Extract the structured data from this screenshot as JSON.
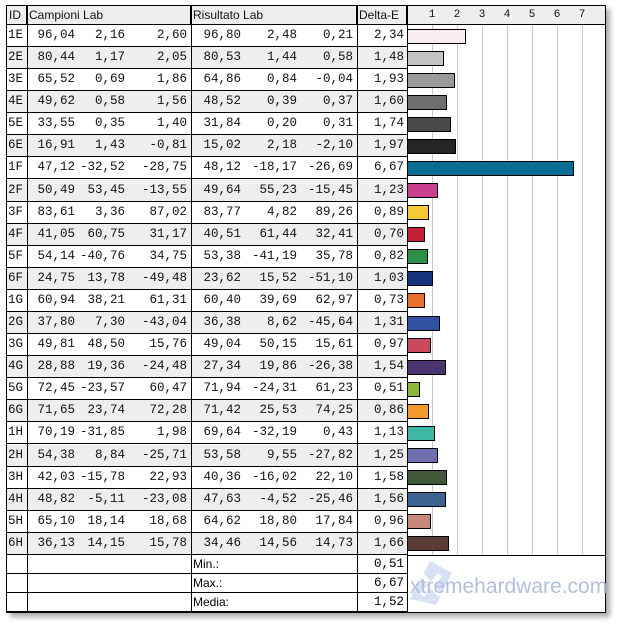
{
  "headers": {
    "id": "ID",
    "campioni": "Campioni Lab",
    "risultato": "Risultato Lab",
    "delta": "Delta-E"
  },
  "chart_data": {
    "type": "bar",
    "orientation": "horizontal",
    "xlim": [
      0,
      8
    ],
    "ticks": [
      "1",
      "2",
      "3",
      "4",
      "5",
      "6",
      "7"
    ],
    "grid": true,
    "categories": [
      "1E",
      "2E",
      "3E",
      "4E",
      "5E",
      "6E",
      "1F",
      "2F",
      "3F",
      "4F",
      "5F",
      "6F",
      "1G",
      "2G",
      "3G",
      "4G",
      "5G",
      "6G",
      "1H",
      "2H",
      "3H",
      "4H",
      "5H",
      "6H"
    ],
    "values": [
      2.34,
      1.48,
      1.93,
      1.6,
      1.74,
      1.97,
      6.67,
      1.23,
      0.89,
      0.7,
      0.82,
      1.03,
      0.73,
      1.31,
      0.97,
      1.54,
      0.51,
      0.86,
      1.13,
      1.25,
      1.58,
      1.56,
      0.96,
      1.66
    ],
    "colors": [
      "#f8eef0",
      "#c4c2c3",
      "#9a9a9a",
      "#6e6e6e",
      "#4a4a4a",
      "#252525",
      "#0a6e94",
      "#c8408c",
      "#f5c838",
      "#c41e32",
      "#2c9148",
      "#14347c",
      "#e8702a",
      "#3050a0",
      "#c84a5c",
      "#4a3470",
      "#8ab838",
      "#f59a2c",
      "#3cb8a4",
      "#7070b0",
      "#405838",
      "#3c6490",
      "#c88878",
      "#5a3c34"
    ]
  },
  "rows": [
    [
      "1E",
      "96,04",
      "2,16",
      "2,60",
      "96,80",
      "2,48",
      "0,21",
      "2,34"
    ],
    [
      "2E",
      "80,44",
      "1,17",
      "2,05",
      "80,53",
      "1,44",
      "0,58",
      "1,48"
    ],
    [
      "3E",
      "65,52",
      "0,69",
      "1,86",
      "64,86",
      "0,84",
      "-0,04",
      "1,93"
    ],
    [
      "4E",
      "49,62",
      "0,58",
      "1,56",
      "48,52",
      "0,39",
      "0,37",
      "1,60"
    ],
    [
      "5E",
      "33,55",
      "0,35",
      "1,40",
      "31,84",
      "0,20",
      "0,31",
      "1,74"
    ],
    [
      "6E",
      "16,91",
      "1,43",
      "-0,81",
      "15,02",
      "2,18",
      "-2,10",
      "1,97"
    ],
    [
      "1F",
      "47,12",
      "-32,52",
      "-28,75",
      "48,12",
      "-18,17",
      "-26,69",
      "6,67"
    ],
    [
      "2F",
      "50,49",
      "53,45",
      "-13,55",
      "49,64",
      "55,23",
      "-15,45",
      "1,23"
    ],
    [
      "3F",
      "83,61",
      "3,36",
      "87,02",
      "83,77",
      "4,82",
      "89,26",
      "0,89"
    ],
    [
      "4F",
      "41,05",
      "60,75",
      "31,17",
      "40,51",
      "61,44",
      "32,41",
      "0,70"
    ],
    [
      "5F",
      "54,14",
      "-40,76",
      "34,75",
      "53,38",
      "-41,19",
      "35,78",
      "0,82"
    ],
    [
      "6F",
      "24,75",
      "13,78",
      "-49,48",
      "23,62",
      "15,52",
      "-51,10",
      "1,03"
    ],
    [
      "1G",
      "60,94",
      "38,21",
      "61,31",
      "60,40",
      "39,69",
      "62,97",
      "0,73"
    ],
    [
      "2G",
      "37,80",
      "7,30",
      "-43,04",
      "36,38",
      "8,62",
      "-45,64",
      "1,31"
    ],
    [
      "3G",
      "49,81",
      "48,50",
      "15,76",
      "49,04",
      "50,15",
      "15,61",
      "0,97"
    ],
    [
      "4G",
      "28,88",
      "19,36",
      "-24,48",
      "27,34",
      "19,86",
      "-26,38",
      "1,54"
    ],
    [
      "5G",
      "72,45",
      "-23,57",
      "60,47",
      "71,94",
      "-24,31",
      "61,23",
      "0,51"
    ],
    [
      "6G",
      "71,65",
      "23,74",
      "72,28",
      "71,42",
      "25,53",
      "74,25",
      "0,86"
    ],
    [
      "1H",
      "70,19",
      "-31,85",
      "1,98",
      "69,64",
      "-32,19",
      "0,43",
      "1,13"
    ],
    [
      "2H",
      "54,38",
      "8,84",
      "-25,71",
      "53,58",
      "9,55",
      "-27,82",
      "1,25"
    ],
    [
      "3H",
      "42,03",
      "-15,78",
      "22,93",
      "40,36",
      "-16,02",
      "22,10",
      "1,58"
    ],
    [
      "4H",
      "48,82",
      "-5,11",
      "-23,08",
      "47,63",
      "-4,52",
      "-25,46",
      "1,56"
    ],
    [
      "5H",
      "65,10",
      "18,14",
      "18,68",
      "64,62",
      "18,80",
      "17,84",
      "0,96"
    ],
    [
      "6H",
      "36,13",
      "14,15",
      "15,78",
      "34,46",
      "14,56",
      "14,73",
      "1,66"
    ]
  ],
  "summary": [
    {
      "label": "Min.:",
      "value": "0,51"
    },
    {
      "label": "Max.:",
      "value": "6,67"
    },
    {
      "label": "Media:",
      "value": "1,52"
    }
  ],
  "watermark": {
    "text": "xtremehardware.com",
    "logo": "X"
  }
}
